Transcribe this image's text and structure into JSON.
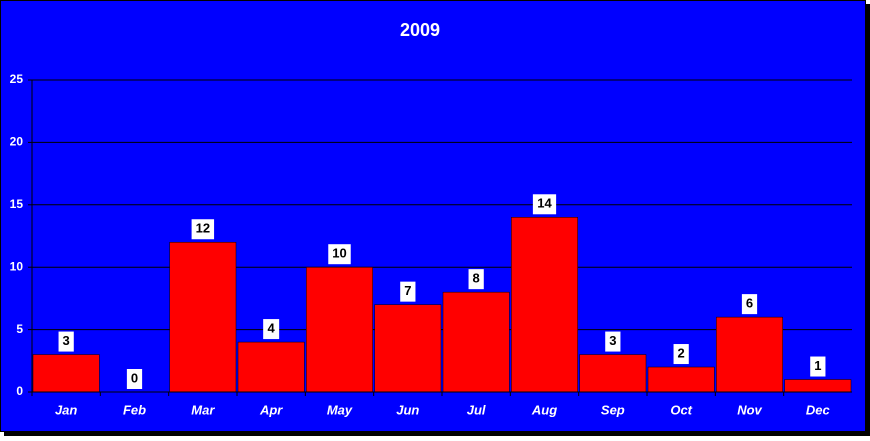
{
  "chart_data": {
    "type": "bar",
    "title": "2009",
    "categories": [
      "Jan",
      "Feb",
      "Mar",
      "Apr",
      "May",
      "Jun",
      "Jul",
      "Aug",
      "Sep",
      "Oct",
      "Nov",
      "Dec"
    ],
    "values": [
      3,
      0,
      12,
      4,
      10,
      7,
      8,
      14,
      3,
      2,
      6,
      1
    ],
    "color": "#ff0000",
    "ylim": [
      0,
      25
    ],
    "yticks": [
      0,
      5,
      10,
      15,
      20,
      25
    ],
    "grid": true
  }
}
